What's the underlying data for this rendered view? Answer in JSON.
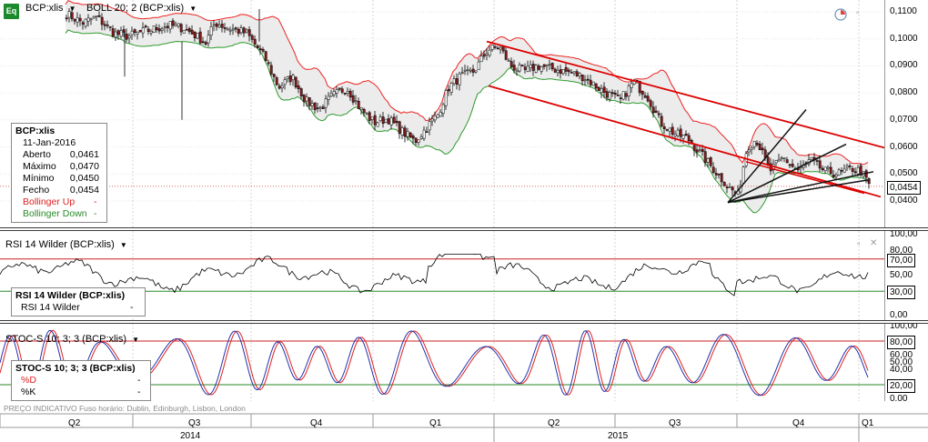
{
  "header": {
    "symbol": "BCP:xlis",
    "indicator": "BOLL 20; 2 (BCP:xlis)",
    "app_icon_label": "Eq"
  },
  "main_axis": {
    "ticks": [
      "0,1100",
      "0,1000",
      "0,0900",
      "0,0800",
      "0,0700",
      "0,0600",
      "0,0500",
      "0,0400"
    ],
    "last_price": "0,0454"
  },
  "info_box": {
    "title": "BCP:xlis",
    "date": "11-Jan-2016",
    "rows": [
      {
        "label": "Aberto",
        "value": "0,0461"
      },
      {
        "label": "Máximo",
        "value": "0,0470"
      },
      {
        "label": "Mínimo",
        "value": "0,0450"
      },
      {
        "label": "Fecho",
        "value": "0,0454"
      }
    ],
    "boll_up": {
      "label": "Bollinger Up",
      "value": "-"
    },
    "boll_down": {
      "label": "Bollinger Down",
      "value": "-"
    }
  },
  "rsi_panel": {
    "header": "RSI 14 Wilder (BCP:xlis)",
    "box_title": "RSI 14 Wilder (BCP:xlis)",
    "box_row_label": "RSI 14 Wilder",
    "box_row_value": "-",
    "ticks": [
      "100,00",
      "80,00",
      "50,00",
      "30,00",
      "0,00"
    ],
    "boxed_ticks": [
      "70,00",
      "30,00"
    ]
  },
  "stoch_panel": {
    "header": "STOC-S 10; 3; 3 (BCP:xlis)",
    "box_title": "STOC-S 10; 3; 3 (BCP:xlis)",
    "d_label": "%D",
    "d_value": "-",
    "k_label": "%K",
    "k_value": "-",
    "ticks": [
      "100,00",
      "60,00",
      "50,00",
      "40,00",
      "0,00"
    ],
    "boxed_ticks": [
      "80,00",
      "20,00"
    ]
  },
  "x_axis": {
    "quarters": [
      "Q2",
      "Q3",
      "Q4",
      "Q1",
      "Q2",
      "Q3",
      "Q4",
      "Q1"
    ],
    "years": [
      "2014",
      "2015"
    ],
    "footer_note": "PREÇO INDICATIVO     Fuso horário: Dublin, Edinburgh, Lisbon, London"
  },
  "colors": {
    "candle_up": "#ffffff",
    "candle_down": "#8b1a1a",
    "boll_up": "#ee2222",
    "boll_down": "#2e9b2e",
    "band_fill": "#ececec",
    "trend": "#dd0000",
    "fan": "#111111",
    "rsi_line": "#000000",
    "stoch_d": "#dd2222",
    "stoch_k": "#2233aa"
  }
}
